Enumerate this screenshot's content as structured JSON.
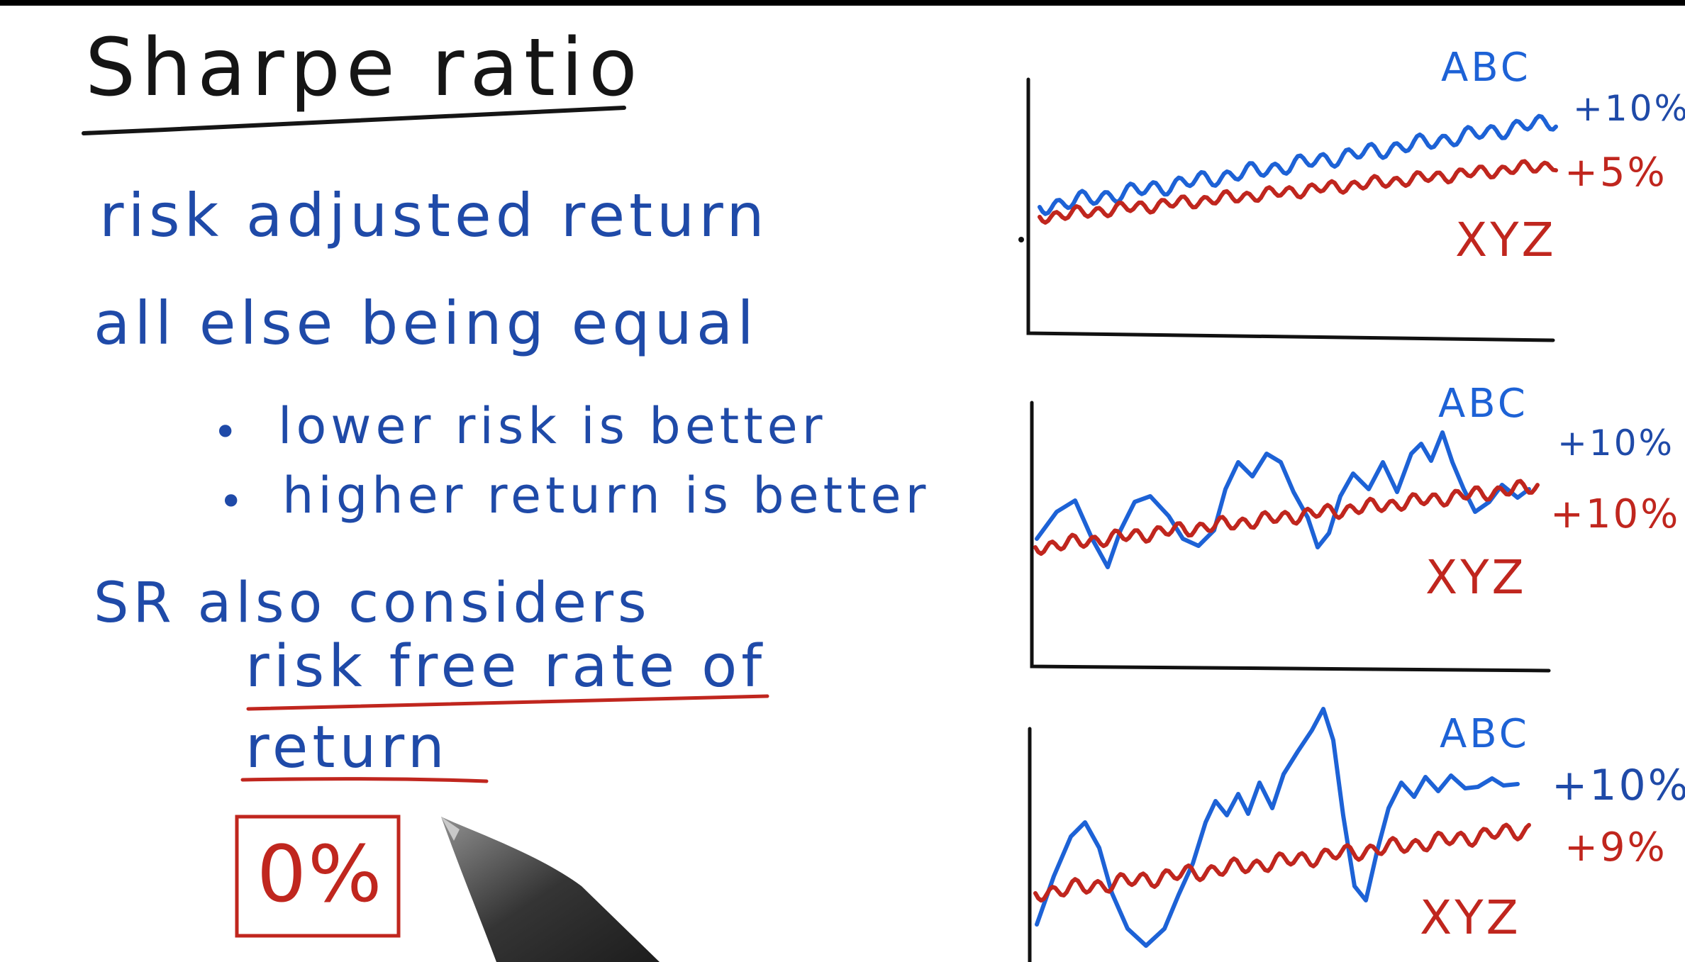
{
  "title": "Sharpe ratio",
  "lines": {
    "definition": "risk adjusted return",
    "premise": "all else being equal",
    "bullet1": "lower risk is better",
    "bullet2": "higher return is better",
    "sr_considers": "SR also considers",
    "rfr_line1": "risk free rate of",
    "rfr_line2": "return",
    "boxed_value": "0%"
  },
  "panels": [
    {
      "top_label": "ABC",
      "bottom_label": "XYZ",
      "blue_return": "+10%",
      "red_return": "+5%"
    },
    {
      "top_label": "ABC",
      "bottom_label": "XYZ",
      "blue_return": "+10%",
      "red_return": "+10%"
    },
    {
      "top_label": "ABC",
      "bottom_label": "XYZ",
      "blue_return": "+10%",
      "red_return": "+9%"
    }
  ],
  "colors": {
    "text_ink": "#1f4aa8",
    "title_ink": "#151515",
    "red_ink": "#c0261e",
    "abc_ink": "#1d62d6",
    "axis_ink": "#111111"
  }
}
